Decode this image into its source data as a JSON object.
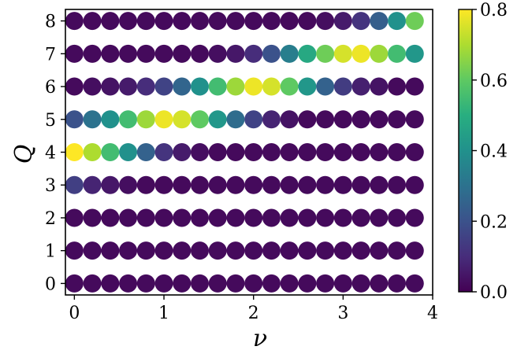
{
  "chart_data": {
    "type": "scatter",
    "title": "",
    "xlabel": "ν",
    "ylabel": "Q",
    "xlim": [
      -0.1,
      4.0
    ],
    "ylim": [
      -0.35,
      8.35
    ],
    "x": [
      0.0,
      0.2,
      0.4,
      0.6,
      0.8,
      1.0,
      1.2,
      1.4,
      1.6,
      1.8,
      2.0,
      2.2,
      2.4,
      2.6,
      2.8,
      3.0,
      3.2,
      3.4,
      3.6,
      3.8
    ],
    "y": [
      0,
      1,
      2,
      3,
      4,
      5,
      6,
      7,
      8
    ],
    "values": [
      [
        0.02,
        0.02,
        0.02,
        0.02,
        0.02,
        0.02,
        0.02,
        0.02,
        0.02,
        0.02,
        0.02,
        0.02,
        0.02,
        0.02,
        0.02,
        0.02,
        0.02,
        0.02,
        0.02,
        0.02
      ],
      [
        0.02,
        0.02,
        0.02,
        0.02,
        0.02,
        0.02,
        0.02,
        0.02,
        0.02,
        0.02,
        0.02,
        0.02,
        0.02,
        0.02,
        0.02,
        0.02,
        0.02,
        0.02,
        0.02,
        0.02
      ],
      [
        0.02,
        0.02,
        0.02,
        0.02,
        0.02,
        0.02,
        0.02,
        0.02,
        0.02,
        0.02,
        0.02,
        0.02,
        0.02,
        0.02,
        0.02,
        0.02,
        0.02,
        0.02,
        0.02,
        0.02
      ],
      [
        0.15,
        0.08,
        0.05,
        0.03,
        0.02,
        0.02,
        0.02,
        0.02,
        0.02,
        0.02,
        0.02,
        0.02,
        0.02,
        0.02,
        0.02,
        0.02,
        0.02,
        0.02,
        0.02,
        0.02
      ],
      [
        0.8,
        0.7,
        0.55,
        0.4,
        0.25,
        0.12,
        0.06,
        0.03,
        0.02,
        0.02,
        0.02,
        0.02,
        0.02,
        0.02,
        0.02,
        0.02,
        0.02,
        0.02,
        0.02,
        0.02
      ],
      [
        0.2,
        0.3,
        0.4,
        0.55,
        0.68,
        0.78,
        0.75,
        0.6,
        0.42,
        0.28,
        0.16,
        0.08,
        0.04,
        0.02,
        0.02,
        0.02,
        0.02,
        0.02,
        0.02,
        0.02
      ],
      [
        0.02,
        0.03,
        0.04,
        0.06,
        0.1,
        0.16,
        0.26,
        0.4,
        0.55,
        0.68,
        0.78,
        0.75,
        0.6,
        0.42,
        0.25,
        0.14,
        0.07,
        0.04,
        0.02,
        0.02
      ],
      [
        0.02,
        0.02,
        0.02,
        0.02,
        0.02,
        0.02,
        0.02,
        0.02,
        0.03,
        0.05,
        0.1,
        0.2,
        0.34,
        0.48,
        0.62,
        0.75,
        0.78,
        0.68,
        0.55,
        0.42
      ],
      [
        0.02,
        0.02,
        0.02,
        0.02,
        0.02,
        0.02,
        0.02,
        0.02,
        0.02,
        0.02,
        0.02,
        0.02,
        0.02,
        0.02,
        0.03,
        0.06,
        0.12,
        0.24,
        0.4,
        0.62
      ]
    ],
    "xticks": [
      "0",
      "1",
      "2",
      "3",
      "4"
    ],
    "xtick_values": [
      0,
      1,
      2,
      3,
      4
    ],
    "yticks": [
      "0",
      "1",
      "2",
      "3",
      "4",
      "5",
      "6",
      "7",
      "8"
    ],
    "colorbar": {
      "colormap": "viridis",
      "range": [
        0.0,
        0.8
      ],
      "ticks": [
        "0.0",
        "0.2",
        "0.4",
        "0.6",
        "0.8"
      ],
      "tick_values": [
        0.0,
        0.2,
        0.4,
        0.6,
        0.8
      ]
    },
    "grid": false
  }
}
